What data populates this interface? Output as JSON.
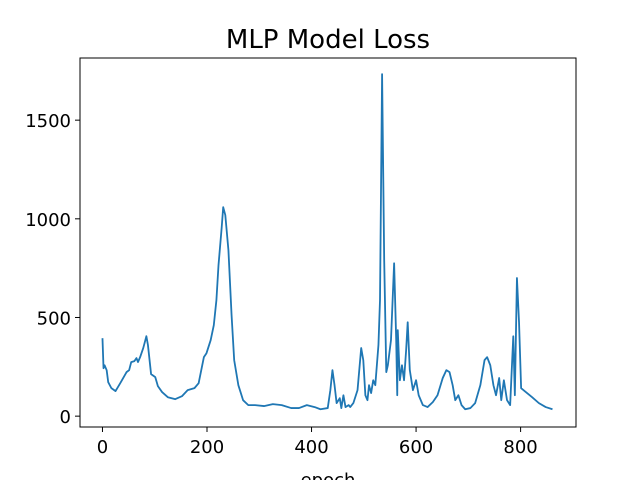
{
  "chart_data": {
    "type": "line",
    "title": "MLP Model Loss",
    "xlabel": "epoch",
    "color": "#1f77b4",
    "x": [
      0,
      2,
      4,
      8,
      11,
      17,
      25,
      34,
      46,
      51,
      55,
      61,
      65,
      68,
      72,
      78,
      84,
      87,
      93,
      101,
      106,
      114,
      125,
      139,
      152,
      163,
      176,
      184,
      194,
      199,
      207,
      213,
      218,
      222,
      228,
      231,
      235,
      241,
      247,
      252,
      260,
      269,
      279,
      292,
      309,
      326,
      343,
      361,
      376,
      391,
      406,
      417,
      431,
      436,
      440,
      444,
      448,
      454,
      457,
      461,
      465,
      471,
      474,
      480,
      488,
      495,
      499,
      503,
      507,
      510,
      514,
      518,
      522,
      528,
      531,
      535,
      539,
      543,
      546,
      552,
      558,
      562,
      564,
      565,
      569,
      573,
      577,
      581,
      584,
      588,
      594,
      600,
      605,
      613,
      622,
      632,
      641,
      651,
      658,
      664,
      670,
      675,
      681,
      687,
      694,
      704,
      713,
      723,
      731,
      736,
      742,
      748,
      753,
      759,
      763,
      768,
      774,
      780,
      786,
      789,
      793,
      797,
      801,
      810,
      822,
      835,
      848,
      861
    ],
    "values": [
      395,
      243,
      258,
      233,
      172,
      142,
      127,
      167,
      223,
      233,
      274,
      279,
      294,
      274,
      299,
      345,
      405,
      360,
      213,
      198,
      152,
      122,
      96,
      86,
      101,
      132,
      142,
      167,
      299,
      319,
      385,
      461,
      588,
      765,
      953,
      1059,
      1019,
      841,
      512,
      284,
      157,
      81,
      56,
      56,
      51,
      61,
      56,
      41,
      41,
      56,
      46,
      35,
      41,
      132,
      233,
      157,
      66,
      91,
      41,
      106,
      46,
      56,
      46,
      66,
      132,
      345,
      284,
      106,
      81,
      157,
      117,
      182,
      157,
      360,
      588,
      1733,
      791,
      223,
      258,
      385,
      775,
      385,
      106,
      436,
      182,
      258,
      182,
      335,
      476,
      233,
      132,
      182,
      106,
      56,
      46,
      71,
      106,
      193,
      233,
      223,
      157,
      81,
      106,
      56,
      35,
      41,
      66,
      157,
      284,
      299,
      258,
      157,
      106,
      193,
      81,
      182,
      81,
      56,
      405,
      106,
      700,
      476,
      142,
      122,
      96,
      66,
      46,
      35
    ],
    "xlim": [
      -43,
      906
    ],
    "ylim": [
      -55,
      1815
    ],
    "xticks": [
      0,
      200,
      400,
      600,
      800
    ],
    "yticks": [
      0,
      500,
      1000,
      1500
    ]
  }
}
